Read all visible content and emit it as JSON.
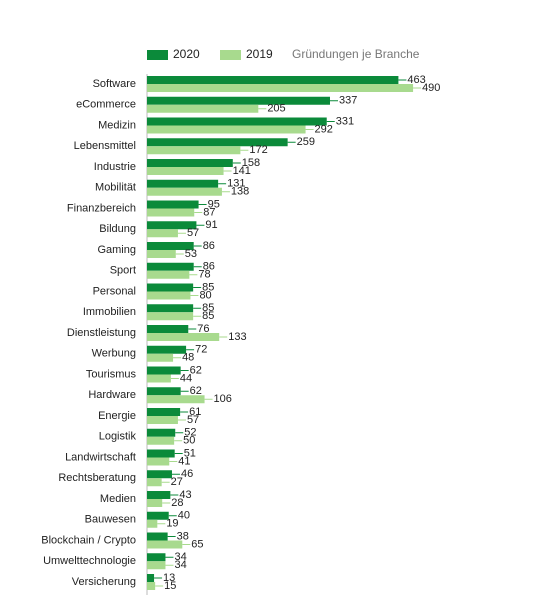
{
  "chart_data": {
    "type": "bar",
    "orientation": "horizontal",
    "title": "Gründungen je Branche",
    "categories": [
      "Software",
      "eCommerce",
      "Medizin",
      "Lebensmittel",
      "Industrie",
      "Mobilität",
      "Finanzbereich",
      "Bildung",
      "Gaming",
      "Sport",
      "Personal",
      "Immobilien",
      "Dienstleistung",
      "Werbung",
      "Tourismus",
      "Hardware",
      "Energie",
      "Logistik",
      "Landwirtschaft",
      "Rechtsberatung",
      "Medien",
      "Bauwesen",
      "Blockchain / Crypto",
      "Umwelttechnologie",
      "Versicherung"
    ],
    "series": [
      {
        "name": "2020",
        "color": "#0b8a3a",
        "values": [
          463,
          337,
          331,
          259,
          158,
          131,
          95,
          91,
          86,
          86,
          85,
          85,
          76,
          72,
          62,
          62,
          61,
          52,
          51,
          46,
          43,
          40,
          38,
          34,
          13
        ]
      },
      {
        "name": "2019",
        "color": "#a8da8e",
        "values": [
          490,
          205,
          292,
          172,
          141,
          138,
          87,
          57,
          53,
          78,
          80,
          85,
          133,
          48,
          44,
          106,
          57,
          50,
          41,
          27,
          28,
          19,
          65,
          34,
          15
        ]
      }
    ]
  }
}
